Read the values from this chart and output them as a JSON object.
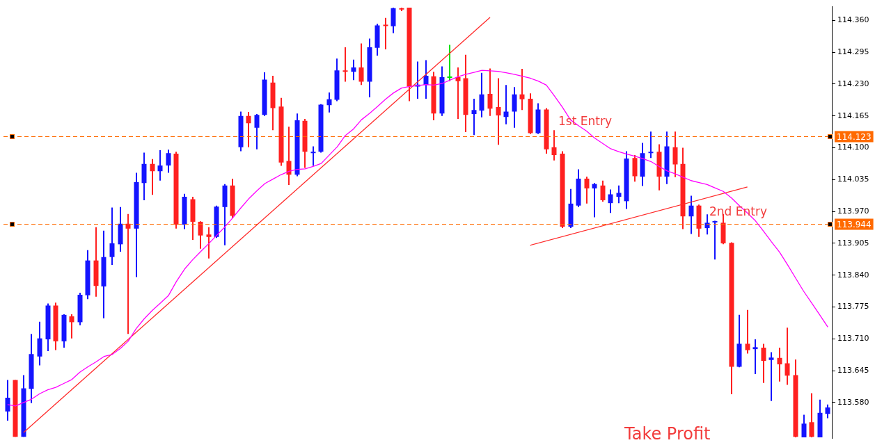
{
  "chart_data": {
    "type": "candlestick",
    "categories": [
      null,
      null,
      null,
      null,
      null,
      null,
      null,
      null,
      null,
      null,
      null,
      null,
      null,
      null,
      null,
      null,
      null,
      null,
      null,
      null,
      null,
      null,
      null,
      null,
      null,
      null,
      null,
      null,
      null,
      null,
      null,
      null,
      null,
      null,
      null,
      null,
      null,
      null,
      null,
      null,
      null,
      null,
      null,
      null,
      null,
      null,
      null,
      null,
      null,
      null,
      null,
      null,
      null,
      null,
      null,
      null,
      null,
      null,
      null,
      null,
      null,
      null,
      null,
      null,
      null,
      null,
      null,
      null,
      null,
      null,
      null,
      null,
      null,
      null,
      null,
      null,
      null,
      null,
      null,
      null,
      null,
      null,
      null,
      null,
      null,
      null,
      null,
      null,
      null,
      null,
      null,
      null,
      null,
      null,
      null,
      null,
      null,
      null,
      null,
      null,
      null,
      null,
      null
    ],
    "ohlc": [
      [
        113.562,
        113.626,
        113.543,
        113.59
      ],
      [
        113.626,
        113.626,
        113.51,
        113.51
      ],
      [
        113.51,
        113.636,
        113.51,
        113.609
      ],
      [
        113.608,
        113.72,
        113.579,
        113.679
      ],
      [
        113.674,
        113.745,
        113.656,
        113.711
      ],
      [
        113.709,
        113.782,
        113.685,
        113.778
      ],
      [
        113.778,
        113.784,
        113.687,
        113.705
      ],
      [
        113.705,
        113.76,
        113.692,
        113.759
      ],
      [
        113.756,
        113.76,
        113.711,
        113.744
      ],
      [
        113.744,
        113.804,
        113.738,
        113.8
      ],
      [
        113.799,
        113.891,
        113.791,
        113.87
      ],
      [
        113.87,
        113.938,
        113.796,
        113.818
      ],
      [
        113.817,
        113.931,
        113.752,
        113.877
      ],
      [
        113.877,
        113.978,
        113.861,
        113.905
      ],
      [
        113.903,
        113.979,
        113.888,
        113.945
      ],
      [
        113.945,
        113.965,
        113.72,
        113.935
      ],
      [
        113.935,
        114.049,
        113.836,
        114.03
      ],
      [
        114.028,
        114.09,
        113.993,
        114.067
      ],
      [
        114.067,
        114.077,
        114.004,
        114.052
      ],
      [
        114.052,
        114.095,
        114.033,
        114.064
      ],
      [
        114.064,
        114.096,
        114.049,
        114.089
      ],
      [
        114.088,
        114.092,
        113.935,
        113.943
      ],
      [
        113.943,
        114.006,
        113.934,
        114.0
      ],
      [
        113.995,
        114.0,
        113.912,
        113.949
      ],
      [
        113.949,
        113.95,
        113.894,
        113.921
      ],
      [
        113.923,
        113.938,
        113.874,
        113.918
      ],
      [
        113.918,
        113.982,
        113.916,
        113.98
      ],
      [
        113.979,
        114.026,
        113.901,
        114.023
      ],
      [
        114.023,
        114.037,
        113.956,
        113.961
      ],
      [
        114.101,
        114.174,
        114.093,
        114.165
      ],
      [
        114.165,
        114.173,
        114.101,
        114.15
      ],
      [
        114.141,
        114.169,
        114.097,
        114.167
      ],
      [
        114.167,
        114.254,
        114.165,
        114.239
      ],
      [
        114.233,
        114.247,
        114.136,
        114.181
      ],
      [
        114.184,
        114.202,
        114.063,
        114.07
      ],
      [
        114.073,
        114.143,
        114.024,
        114.045
      ],
      [
        114.045,
        114.17,
        114.042,
        114.156
      ],
      [
        114.155,
        114.159,
        114.059,
        114.092
      ],
      [
        114.089,
        114.103,
        114.063,
        114.092
      ],
      [
        114.092,
        114.189,
        114.09,
        114.188
      ],
      [
        114.187,
        114.213,
        114.172,
        114.199
      ],
      [
        114.198,
        114.282,
        114.195,
        114.258
      ],
      [
        114.258,
        114.305,
        114.235,
        114.255
      ],
      [
        114.255,
        114.28,
        114.238,
        114.264
      ],
      [
        114.264,
        114.313,
        114.228,
        114.235
      ],
      [
        114.235,
        114.323,
        114.203,
        114.305
      ],
      [
        114.304,
        114.353,
        114.288,
        114.35
      ],
      [
        114.35,
        114.365,
        114.301,
        114.348
      ],
      [
        114.348,
        114.386,
        114.334,
        114.385
      ],
      [
        114.385,
        114.386,
        114.379,
        114.382
      ],
      [
        114.386,
        114.386,
        114.195,
        114.225
      ],
      [
        114.225,
        114.276,
        114.2,
        114.229
      ],
      [
        114.228,
        114.279,
        114.2,
        114.247
      ],
      [
        114.246,
        114.255,
        114.156,
        114.17
      ],
      [
        114.17,
        114.266,
        114.165,
        114.244
      ],
      [
        114.244,
        114.31,
        114.236,
        114.244
      ],
      [
        114.244,
        114.264,
        114.159,
        114.236
      ],
      [
        114.242,
        114.29,
        114.132,
        114.167
      ],
      [
        114.169,
        114.2,
        114.126,
        114.177
      ],
      [
        114.176,
        114.253,
        114.162,
        114.209
      ],
      [
        114.21,
        114.262,
        114.165,
        114.18
      ],
      [
        114.183,
        114.242,
        114.106,
        114.166
      ],
      [
        114.163,
        114.228,
        114.148,
        114.174
      ],
      [
        114.174,
        114.224,
        114.141,
        114.209
      ],
      [
        114.209,
        114.261,
        114.177,
        114.199
      ],
      [
        114.2,
        114.211,
        114.128,
        114.13
      ],
      [
        114.13,
        114.191,
        114.128,
        114.178
      ],
      [
        114.178,
        114.181,
        114.088,
        114.097
      ],
      [
        114.101,
        114.136,
        114.074,
        114.085
      ],
      [
        114.088,
        114.093,
        113.936,
        113.939
      ],
      [
        113.939,
        114.016,
        113.936,
        113.986
      ],
      [
        113.982,
        114.056,
        113.979,
        114.037
      ],
      [
        114.037,
        114.041,
        113.986,
        114.017
      ],
      [
        114.017,
        114.028,
        113.958,
        114.026
      ],
      [
        114.023,
        114.033,
        113.99,
        113.993
      ],
      [
        113.987,
        114.015,
        113.967,
        114.005
      ],
      [
        114.0,
        114.023,
        113.987,
        114.008
      ],
      [
        113.991,
        114.093,
        113.975,
        114.078
      ],
      [
        114.079,
        114.085,
        114.031,
        114.042
      ],
      [
        114.041,
        114.11,
        114.022,
        114.089
      ],
      [
        114.089,
        114.133,
        114.079,
        114.092
      ],
      [
        114.092,
        114.107,
        114.013,
        114.041
      ],
      [
        114.041,
        114.133,
        114.026,
        114.103
      ],
      [
        114.101,
        114.133,
        114.04,
        114.066
      ],
      [
        114.067,
        114.1,
        113.934,
        113.96
      ],
      [
        113.96,
        114.002,
        113.924,
        113.982
      ],
      [
        113.982,
        113.984,
        113.918,
        113.935
      ],
      [
        113.936,
        113.964,
        113.923,
        113.947
      ],
      [
        113.947,
        113.951,
        113.872,
        113.949
      ],
      [
        113.947,
        113.965,
        113.903,
        113.905
      ],
      [
        113.906,
        113.907,
        113.597,
        113.653
      ],
      [
        113.653,
        113.759,
        113.652,
        113.7
      ],
      [
        113.7,
        113.769,
        113.68,
        113.687
      ],
      [
        113.689,
        113.709,
        113.638,
        113.693
      ],
      [
        113.692,
        113.7,
        113.62,
        113.665
      ],
      [
        113.667,
        113.683,
        113.583,
        113.672
      ],
      [
        113.671,
        113.692,
        113.623,
        113.658
      ],
      [
        113.66,
        113.733,
        113.616,
        113.635
      ],
      [
        113.636,
        113.668,
        113.509,
        113.51
      ],
      [
        113.509,
        113.555,
        113.509,
        113.537
      ],
      [
        113.54,
        113.599,
        113.509,
        113.51
      ],
      [
        113.509,
        113.586,
        113.509,
        113.559
      ],
      [
        113.557,
        113.576,
        113.548,
        113.57
      ]
    ],
    "colors": [
      "#1414ff",
      "#ff2020",
      "#1414ff",
      "#1414ff",
      "#1414ff",
      "#1414ff",
      "#ff2020",
      "#1414ff",
      "#ff2020",
      "#1414ff",
      "#1414ff",
      "#ff2020",
      "#1414ff",
      "#1414ff",
      "#1414ff",
      "#ff2020",
      "#1414ff",
      "#1414ff",
      "#ff2020",
      "#1414ff",
      "#1414ff",
      "#ff2020",
      "#1414ff",
      "#ff2020",
      "#ff2020",
      "#ff2020",
      "#1414ff",
      "#1414ff",
      "#ff2020",
      "#1414ff",
      "#ff2020",
      "#1414ff",
      "#1414ff",
      "#ff2020",
      "#ff2020",
      "#ff2020",
      "#1414ff",
      "#ff2020",
      "#1414ff",
      "#1414ff",
      "#1414ff",
      "#1414ff",
      "#ff2020",
      "#1414ff",
      "#ff2020",
      "#1414ff",
      "#1414ff",
      "#ff2020",
      "#1414ff",
      "#ff2020",
      "#ff2020",
      "#1414ff",
      "#1414ff",
      "#ff2020",
      "#1414ff",
      "#00e000",
      "#ff2020",
      "#ff2020",
      "#1414ff",
      "#1414ff",
      "#ff2020",
      "#ff2020",
      "#1414ff",
      "#1414ff",
      "#ff2020",
      "#ff2020",
      "#1414ff",
      "#ff2020",
      "#ff2020",
      "#ff2020",
      "#1414ff",
      "#1414ff",
      "#ff2020",
      "#1414ff",
      "#ff2020",
      "#1414ff",
      "#1414ff",
      "#1414ff",
      "#ff2020",
      "#1414ff",
      "#1414ff",
      "#ff2020",
      "#1414ff",
      "#ff2020",
      "#ff2020",
      "#1414ff",
      "#ff2020",
      "#1414ff",
      "#1414ff",
      "#ff2020",
      "#ff2020",
      "#1414ff",
      "#ff2020",
      "#1414ff",
      "#ff2020",
      "#1414ff",
      "#ff2020",
      "#ff2020",
      "#ff2020",
      "#1414ff",
      "#ff2020",
      "#1414ff",
      "#1414ff"
    ],
    "series": [
      {
        "type": "line",
        "color": "#ff00ff",
        "values": [
          113.576,
          113.573,
          113.58,
          113.587,
          113.598,
          113.606,
          113.611,
          113.619,
          113.627,
          113.642,
          113.653,
          113.663,
          113.674,
          113.678,
          113.69,
          113.705,
          113.731,
          113.751,
          113.768,
          113.783,
          113.798,
          113.827,
          113.852,
          113.871,
          113.888,
          113.904,
          113.921,
          113.938,
          113.957,
          113.977,
          113.996,
          114.012,
          114.027,
          114.036,
          114.045,
          114.052,
          114.056,
          114.057,
          114.062,
          114.068,
          114.085,
          114.102,
          114.125,
          114.138,
          114.157,
          114.17,
          114.184,
          114.199,
          114.212,
          114.222,
          114.225,
          114.227,
          114.229,
          114.228,
          114.231,
          114.238,
          114.245,
          114.25,
          114.254,
          114.258,
          114.257,
          114.256,
          114.253,
          114.25,
          114.246,
          114.242,
          114.236,
          114.228,
          114.206,
          114.183,
          114.157,
          114.145,
          114.134,
          114.12,
          114.109,
          114.098,
          114.092,
          114.087,
          114.083,
          114.078,
          114.072,
          114.062,
          114.053,
          114.047,
          114.04,
          114.033,
          114.029,
          114.025,
          114.018,
          114.011,
          113.998,
          113.982,
          113.967,
          113.951,
          113.93,
          113.908,
          113.887,
          113.861,
          113.834,
          113.807,
          113.783,
          113.759,
          113.734
        ]
      },
      {
        "type": "line",
        "color": "#ff2a2a",
        "values": [
          null,
          null,
          113.519,
          null,
          null,
          null,
          null,
          null,
          null,
          null,
          null,
          null,
          null,
          null,
          null,
          null,
          null,
          null,
          null,
          null,
          null,
          null,
          null,
          null,
          null,
          null,
          null,
          null,
          null,
          null,
          null,
          null,
          null,
          null,
          null,
          null,
          null,
          null,
          null,
          null,
          null,
          null,
          null,
          null,
          null,
          null,
          null,
          null,
          null,
          null,
          null,
          null,
          null,
          null,
          null,
          null,
          null,
          null,
          null,
          null,
          114.366,
          null,
          null,
          null,
          null,
          null,
          null,
          null,
          null,
          null,
          null,
          null,
          null,
          null,
          null,
          null,
          null,
          null,
          null,
          null,
          null,
          null,
          null,
          null,
          null,
          null,
          null,
          null,
          null,
          null,
          null,
          null,
          null,
          null,
          null,
          null,
          null,
          null,
          null,
          null,
          null,
          null,
          null
        ]
      },
      {
        "type": "line",
        "color": "#ff2a2a",
        "values": [
          null,
          null,
          null,
          null,
          null,
          null,
          null,
          null,
          null,
          null,
          null,
          null,
          null,
          null,
          null,
          null,
          null,
          null,
          null,
          null,
          null,
          null,
          null,
          null,
          null,
          null,
          null,
          null,
          null,
          null,
          null,
          null,
          null,
          null,
          null,
          null,
          null,
          null,
          null,
          null,
          null,
          null,
          null,
          null,
          null,
          null,
          null,
          null,
          null,
          null,
          null,
          null,
          null,
          null,
          null,
          null,
          null,
          null,
          null,
          null,
          null,
          null,
          null,
          null,
          null,
          113.901,
          null,
          null,
          null,
          null,
          null,
          null,
          null,
          null,
          null,
          null,
          null,
          null,
          null,
          null,
          null,
          null,
          null,
          null,
          null,
          null,
          null,
          null,
          null,
          null,
          null,
          null,
          114.02,
          null,
          null,
          null,
          null,
          null,
          null,
          null,
          null,
          null,
          null
        ]
      }
    ],
    "ylim": [
      113.507,
      114.388
    ],
    "yticks": [
      {
        "value": 114.36,
        "label": "114.360"
      },
      {
        "value": 114.295,
        "label": "114.295"
      },
      {
        "value": 114.23,
        "label": "114.230"
      },
      {
        "value": 114.165,
        "label": "114.165"
      },
      {
        "value": 114.1,
        "label": "114.100"
      },
      {
        "value": 114.035,
        "label": "114.035"
      },
      {
        "value": 113.97,
        "label": "113.970"
      },
      {
        "value": 113.905,
        "label": "113.905"
      },
      {
        "value": 113.84,
        "label": "113.840"
      },
      {
        "value": 113.775,
        "label": "113.775"
      },
      {
        "value": 113.71,
        "label": "113.710"
      },
      {
        "value": 113.645,
        "label": "113.645"
      },
      {
        "value": 113.58,
        "label": "113.580"
      }
    ],
    "ref_lines": [
      {
        "axis": "y",
        "value": 114.123,
        "label": "114.123",
        "color": "#ff6a00",
        "line_style": "dashed"
      },
      {
        "axis": "y",
        "value": 113.944,
        "label": "113.944",
        "color": "#ff6a00",
        "line_style": "dashed"
      }
    ],
    "annotations": [
      "1st Entry",
      "2nd Entry",
      "Take Profit"
    ],
    "tick_labels": "y"
  }
}
